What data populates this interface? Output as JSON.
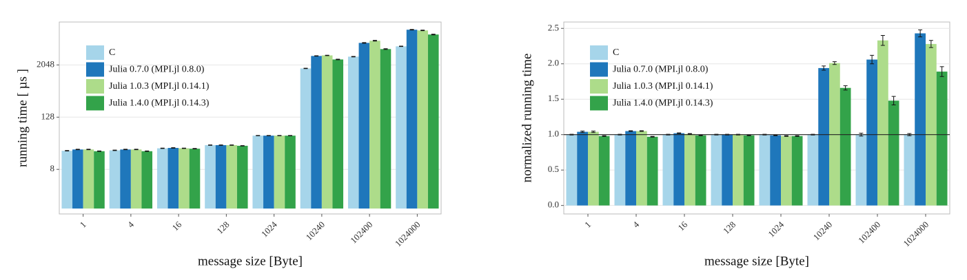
{
  "chart_data": [
    {
      "type": "bar",
      "log_scale": true,
      "xlabel": "message size [Byte]",
      "ylabel": "running time [ µs ]",
      "categories": [
        "1",
        "4",
        "16",
        "128",
        "1024",
        "10240",
        "102400",
        "1024000"
      ],
      "ylim": [
        0.75,
        20000
      ],
      "yticks": [
        8,
        128,
        2048
      ],
      "grid": true,
      "legend": "upper left",
      "series": [
        {
          "name": "C",
          "color": "#a6d5ea",
          "values": [
            21.5,
            22,
            24.5,
            29,
            48,
            1700,
            3180,
            5500
          ],
          "errors": [
            0.3,
            0.3,
            0.3,
            0.3,
            0.5,
            20,
            40,
            60
          ]
        },
        {
          "name": "Julia 0.7.0 (MPI.jl 0.8.0)",
          "color": "#1f77bb",
          "values": [
            23,
            23,
            25,
            29,
            48,
            3300,
            6600,
            13300
          ],
          "errors": [
            0.3,
            0.3,
            0.3,
            0.3,
            0.5,
            40,
            120,
            200
          ]
        },
        {
          "name": "Julia 1.0.3 (MPI.jl 0.14.1)",
          "color": "#addc8a",
          "values": [
            23,
            23,
            24.5,
            29,
            48,
            3400,
            7400,
            12800
          ],
          "errors": [
            0.3,
            0.3,
            0.3,
            0.3,
            0.5,
            40,
            150,
            200
          ]
        },
        {
          "name": "Julia 1.4.0 (MPI.jl 0.14.3)",
          "color": "#33a34a",
          "values": [
            21,
            21,
            24,
            28,
            48,
            2740,
            4760,
            10300
          ],
          "errors": [
            0.3,
            0.3,
            0.3,
            0.3,
            0.5,
            40,
            100,
            200
          ]
        }
      ]
    },
    {
      "type": "bar",
      "log_scale": false,
      "xlabel": "message size [Byte]",
      "ylabel": "normalized running time",
      "categories": [
        "1",
        "4",
        "16",
        "128",
        "1024",
        "10240",
        "102400",
        "1024000"
      ],
      "ylim": [
        -0.12,
        2.59
      ],
      "yticks": [
        {
          "value": 0,
          "label": "0.0"
        },
        {
          "value": 0.5,
          "label": "0.5"
        },
        {
          "value": 1,
          "label": "1.0"
        },
        {
          "value": 1.5,
          "label": "1.5"
        },
        {
          "value": 2,
          "label": "2.0"
        },
        {
          "value": 2.5,
          "label": "2.5"
        }
      ],
      "hline": 1,
      "grid": true,
      "legend": "upper left",
      "series": [
        {
          "name": "C",
          "color": "#a6d5ea",
          "values": [
            1.0,
            1.0,
            1.0,
            1.0,
            1.0,
            1.0,
            1.0,
            1.0
          ],
          "errors": [
            0.005,
            0.005,
            0.005,
            0.005,
            0.005,
            0.005,
            0.02,
            0.015
          ]
        },
        {
          "name": "Julia 0.7.0 (MPI.jl 0.8.0)",
          "color": "#1f77bb",
          "values": [
            1.04,
            1.05,
            1.02,
            1.0,
            0.99,
            1.94,
            2.06,
            2.43
          ],
          "errors": [
            0.01,
            0.005,
            0.005,
            0.005,
            0.005,
            0.03,
            0.06,
            0.05
          ]
        },
        {
          "name": "Julia 1.0.3 (MPI.jl 0.14.1)",
          "color": "#addc8a",
          "values": [
            1.04,
            1.05,
            1.01,
            1.0,
            0.98,
            2.01,
            2.33,
            2.28
          ],
          "errors": [
            0.01,
            0.005,
            0.005,
            0.005,
            0.005,
            0.02,
            0.07,
            0.05
          ]
        },
        {
          "name": "Julia 1.4.0 (MPI.jl 0.14.3)",
          "color": "#33a34a",
          "values": [
            0.98,
            0.97,
            0.99,
            0.99,
            0.98,
            1.66,
            1.48,
            1.89
          ],
          "errors": [
            0.005,
            0.005,
            0.005,
            0.005,
            0.005,
            0.03,
            0.06,
            0.07
          ]
        }
      ]
    }
  ]
}
